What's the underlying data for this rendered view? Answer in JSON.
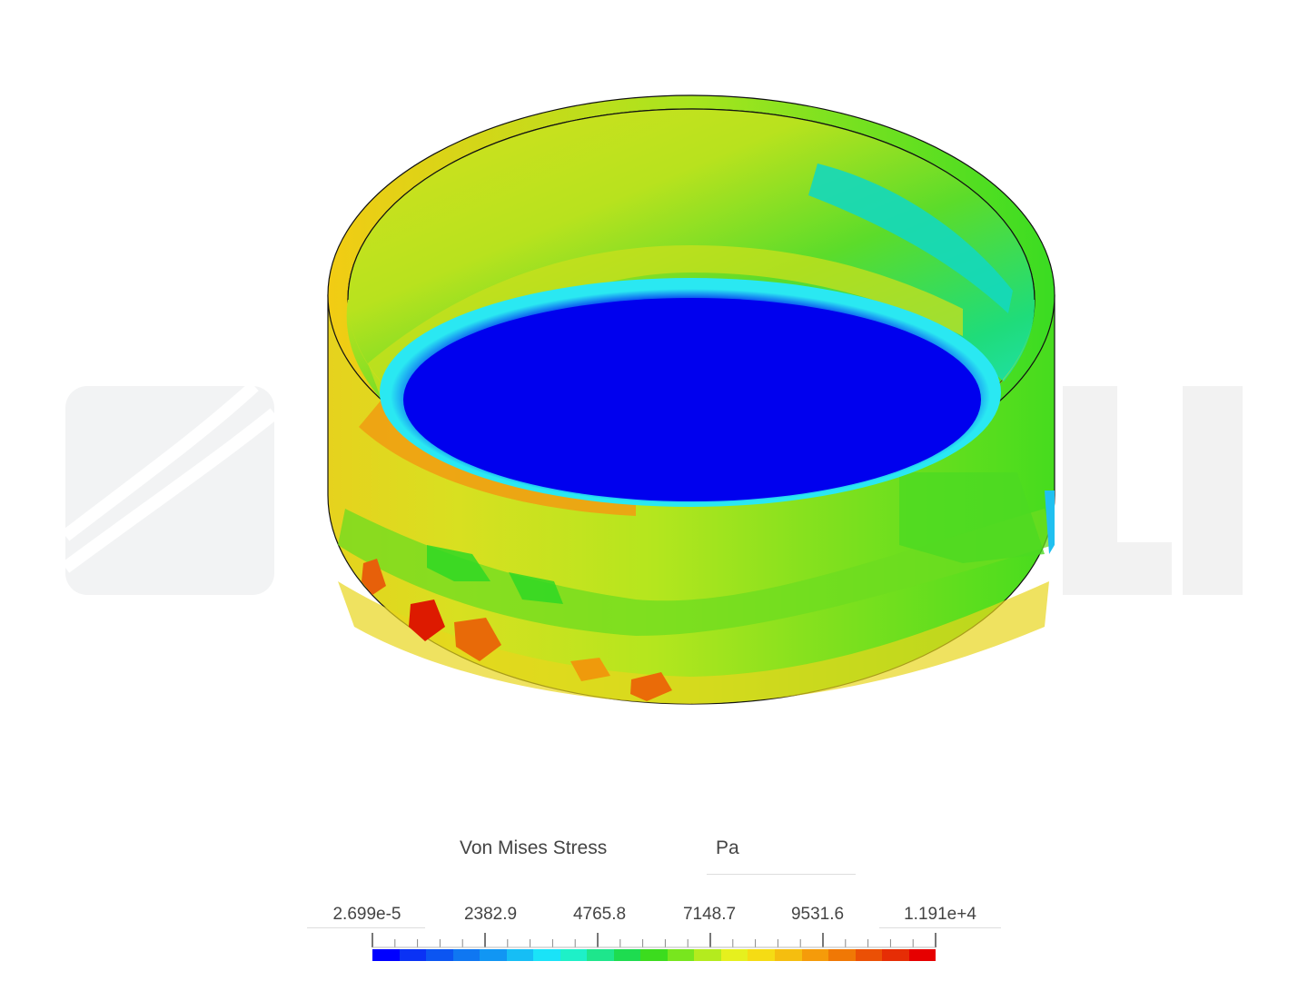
{
  "legend": {
    "title": "Von Mises Stress",
    "unit": "Pa",
    "tick_labels": [
      "2.699e-5",
      "2382.9",
      "4765.8",
      "7148.7",
      "9531.6",
      "1.191e+4"
    ],
    "colors": [
      "#0000ff",
      "#0a32f5",
      "#0b55f2",
      "#0f77f2",
      "#1196f3",
      "#16bef5",
      "#1ae3f8",
      "#1ef0c8",
      "#1ee68c",
      "#1edc50",
      "#3cdc1e",
      "#78e61e",
      "#b4eb1e",
      "#e6f01e",
      "#f5dc14",
      "#f5be0f",
      "#f59b0a",
      "#f07805",
      "#eb5005",
      "#e62d05",
      "#e60000"
    ]
  },
  "model": {
    "top_band_color": "#22cc33",
    "bottom_color": "#0000ee",
    "inner_ring_color": "#19c6f4",
    "hotspot_color": "#dd0000"
  },
  "watermark": {
    "color": "#f1f1f1"
  }
}
